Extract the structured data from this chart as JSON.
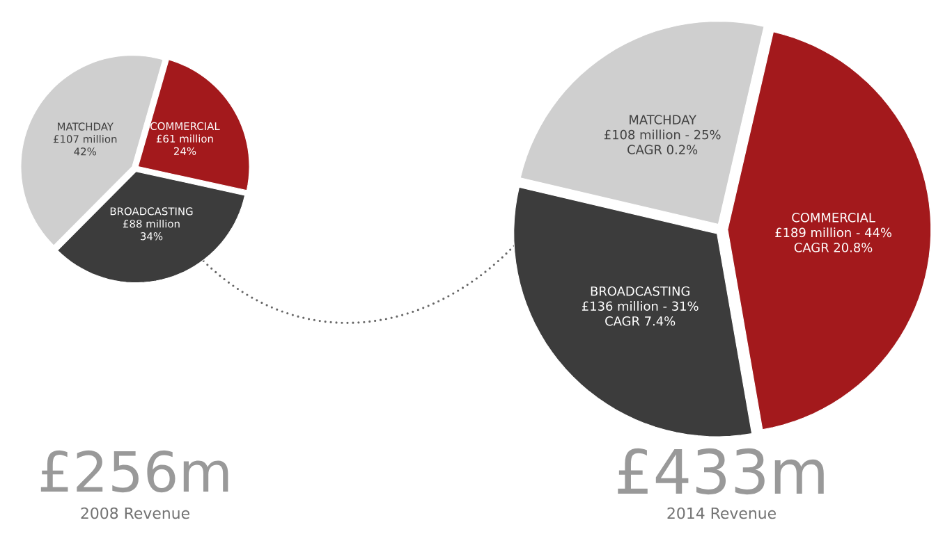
{
  "chart_data": [
    {
      "type": "pie",
      "title": "£256m",
      "subtitle": "2008 Revenue",
      "categories": [
        "COMMERCIAL",
        "BROADCASTING",
        "MATCHDAY"
      ],
      "values": [
        24,
        34,
        42
      ],
      "colors": [
        "#a3191c",
        "#3c3c3c",
        "#cfcfcf"
      ],
      "value_labels": [
        "24%",
        "34%",
        "42%"
      ],
      "annotations": [
        "£61  million",
        "£88  million",
        "£107  million"
      ]
    },
    {
      "type": "pie",
      "title": "£433m",
      "subtitle": "2014 Revenue",
      "categories": [
        "COMMERCIAL",
        "BROADCASTING",
        "MATCHDAY"
      ],
      "values": [
        189,
        136,
        108
      ],
      "colors": [
        "#a3191c",
        "#3c3c3c",
        "#cfcfcf"
      ],
      "value_labels": [
        "£189  million  - 44%",
        "£136  million  - 31%",
        "£108  million  - 25%"
      ],
      "annotations": [
        "CAGR  20.8%",
        "CAGR  7.4%",
        "CAGR  0.2%"
      ]
    }
  ]
}
